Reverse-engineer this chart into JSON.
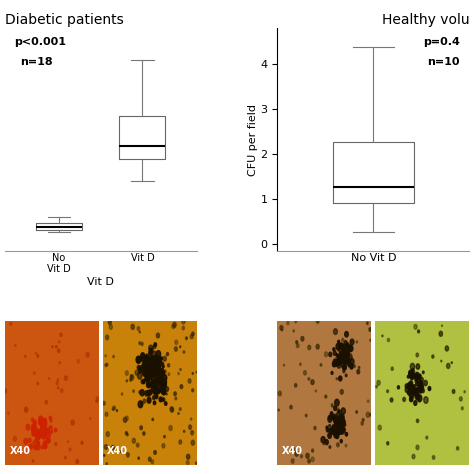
{
  "left_title": "Diabetic patients",
  "right_title": "Healthy volu",
  "ylabel": "CFU per field",
  "left_xlabel": "Vit D",
  "right_xlabel": "No Vit D",
  "left_annotation_line1": "p<0.001",
  "left_annotation_line2": "n=18",
  "right_annotation_line1": "p=0.4",
  "right_annotation_line2": "n=10",
  "left_box1": {
    "whislo": 0.0,
    "q1": 0.05,
    "med": 0.12,
    "q3": 0.22,
    "whishi": 0.38
  },
  "left_box2": {
    "whislo": 1.3,
    "q1": 1.85,
    "med": 2.2,
    "q3": 2.95,
    "whishi": 4.4
  },
  "right_box1": {
    "whislo": 0.28,
    "q1": 0.92,
    "med": 1.28,
    "q3": 2.28,
    "whishi": 4.38
  },
  "ylim_left": [
    -0.5,
    5.2
  ],
  "ylim_right": [
    -0.15,
    4.8
  ],
  "yticks_right": [
    0,
    1,
    2,
    3,
    4
  ],
  "bg_color": "#ffffff",
  "title_fontsize": 10,
  "annotation_fontsize": 8,
  "label_fontsize": 8,
  "axis_fontsize": 8,
  "img_color_left1": "#d4601a",
  "img_color_left2": "#c8820a",
  "img_color_right1": "#b87040",
  "img_color_right2": "#a8c840"
}
